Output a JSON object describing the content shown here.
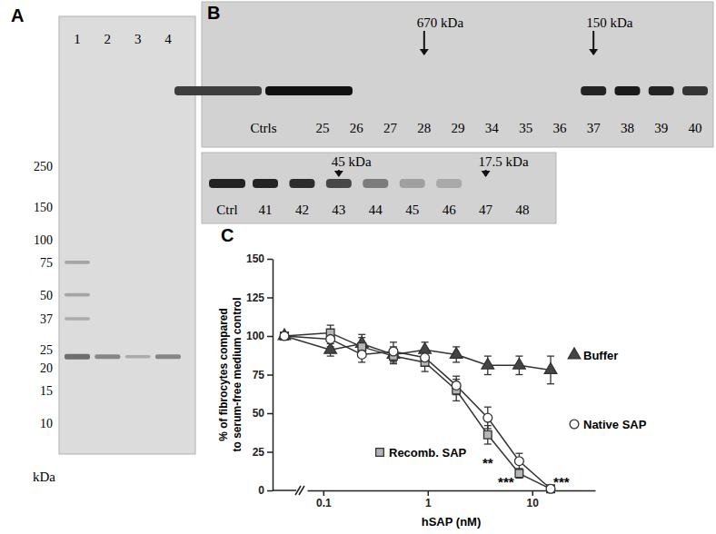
{
  "gel": {
    "label": "A",
    "unit": "kDa",
    "markers": [
      250,
      150,
      100,
      75,
      50,
      37,
      25,
      20,
      15,
      10
    ],
    "lanes": [
      {
        "label": "1",
        "bands": [
          75,
          50,
          37,
          23
        ],
        "intensity": [
          0.35,
          0.35,
          0.3,
          0.8
        ]
      },
      {
        "label": "2",
        "bands": [
          23
        ],
        "intensity": [
          0.6
        ]
      },
      {
        "label": "3",
        "bands": [
          23
        ],
        "intensity": [
          0.3
        ]
      },
      {
        "label": "4",
        "bands": [
          23
        ],
        "intensity": [
          0.6
        ]
      }
    ]
  },
  "blot": {
    "label": "B",
    "rows": [
      {
        "lanes": [
          {
            "label": "Ctrls",
            "band": [
              0.75,
              1.0
            ]
          },
          {
            "label": "25",
            "band": []
          },
          {
            "label": "26",
            "band": []
          },
          {
            "label": "27",
            "band": []
          },
          {
            "label": "28",
            "band": []
          },
          {
            "label": "29",
            "band": []
          },
          {
            "label": "34",
            "band": []
          },
          {
            "label": "35",
            "band": []
          },
          {
            "label": "36",
            "band": []
          },
          {
            "label": "37",
            "band": [
              0.9
            ]
          },
          {
            "label": "38",
            "band": [
              0.95
            ]
          },
          {
            "label": "39",
            "band": [
              0.9
            ]
          },
          {
            "label": "40",
            "band": [
              0.8
            ]
          }
        ],
        "arrows": [
          {
            "text": "670 kDa",
            "lane": "28"
          },
          {
            "text": "150 kDa",
            "lane": "37"
          }
        ]
      },
      {
        "lanes": [
          {
            "label": "Ctrl",
            "band": [
              0.9
            ]
          },
          {
            "label": "41",
            "band": [
              0.9
            ]
          },
          {
            "label": "42",
            "band": [
              0.85
            ]
          },
          {
            "label": "43",
            "band": [
              0.7
            ]
          },
          {
            "label": "44",
            "band": [
              0.4
            ]
          },
          {
            "label": "45",
            "band": [
              0.2
            ]
          },
          {
            "label": "46",
            "band": [
              0.15
            ]
          },
          {
            "label": "47",
            "band": []
          },
          {
            "label": "48",
            "band": []
          }
        ],
        "arrows": [
          {
            "text": "45 kDa",
            "lane": "43"
          },
          {
            "text": "17.5 kDa",
            "lane": "47"
          }
        ]
      }
    ]
  },
  "chart_data": {
    "type": "line",
    "label": "C",
    "xlabel": "hSAP (nM)",
    "ylabel": [
      "% of fibrocytes compared",
      "to serum-free medium control"
    ],
    "log": "x",
    "grid": false,
    "xlim": [
      0.07,
      40
    ],
    "xticks": [
      0.1,
      1,
      10
    ],
    "ylim": [
      0,
      150
    ],
    "yticks": [
      0,
      25,
      50,
      75,
      100,
      125,
      150
    ],
    "x": [
      0.117,
      0.234,
      0.469,
      0.938,
      1.875,
      3.75,
      7.5,
      15
    ],
    "series": [
      {
        "name": "Buffer",
        "color": "#444444",
        "marker": "triangle",
        "control": 100,
        "values": [
          91,
          95,
          88,
          91,
          88,
          81,
          81,
          78
        ],
        "errors": [
          4,
          6,
          5,
          5,
          5,
          6,
          6,
          9
        ]
      },
      {
        "name": "Recomb. SAP",
        "color": "#b5b5b5",
        "marker": "square",
        "control": 100,
        "values": [
          102,
          93,
          87,
          83,
          65,
          36,
          11,
          1
        ],
        "errors": [
          5,
          6,
          5,
          6,
          7,
          6,
          3,
          1
        ]
      },
      {
        "name": "Native SAP",
        "color": "#ffffff",
        "marker": "circle",
        "control": 100,
        "values": [
          98,
          88,
          90,
          86,
          68,
          47,
          19,
          1
        ],
        "errors": [
          5,
          5,
          6,
          5,
          6,
          7,
          5,
          1
        ]
      }
    ],
    "annotations": [
      {
        "text": "**",
        "x": 3.75,
        "y": 18
      },
      {
        "text": "***",
        "x": 5.6,
        "y": 6
      },
      {
        "text": "***",
        "x": 19,
        "y": 6
      }
    ]
  }
}
